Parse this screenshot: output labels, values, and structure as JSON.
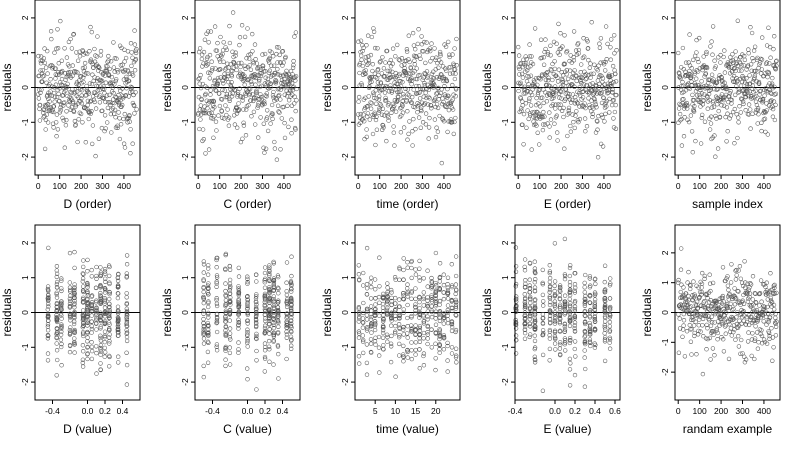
{
  "figure": {
    "point_color": "#555555",
    "ref_line_color": "#000000"
  },
  "chart_data": [
    {
      "type": "scatter",
      "xlabel": "D (order)",
      "ylabel": "residuals",
      "xlim": [
        -15,
        475
      ],
      "ylim": [
        -2.4,
        2.4
      ],
      "xticks": [
        0,
        100,
        200,
        300,
        400
      ],
      "yticks": [
        -2,
        -1,
        0,
        1,
        2
      ],
      "ref_y": 0,
      "pattern": "index",
      "n": 460,
      "seed": 11
    },
    {
      "type": "scatter",
      "xlabel": "C (order)",
      "ylabel": "residuals",
      "xlim": [
        -15,
        475
      ],
      "ylim": [
        -2.4,
        2.4
      ],
      "xticks": [
        0,
        100,
        200,
        300,
        400
      ],
      "yticks": [
        -2,
        -1,
        0,
        1,
        2
      ],
      "ref_y": 0,
      "pattern": "index",
      "n": 460,
      "seed": 23
    },
    {
      "type": "scatter",
      "xlabel": "time (order)",
      "ylabel": "residuals",
      "xlim": [
        -15,
        475
      ],
      "ylim": [
        -2.4,
        2.4
      ],
      "xticks": [
        0,
        100,
        200,
        300,
        400
      ],
      "yticks": [
        -2,
        -1,
        0,
        1,
        2
      ],
      "ref_y": 0,
      "pattern": "index",
      "n": 460,
      "seed": 37
    },
    {
      "type": "scatter",
      "xlabel": "E (order)",
      "ylabel": "residuals",
      "xlim": [
        -15,
        475
      ],
      "ylim": [
        -2.4,
        2.4
      ],
      "xticks": [
        0,
        100,
        200,
        300,
        400
      ],
      "yticks": [
        -2,
        -1,
        0,
        1,
        2
      ],
      "ref_y": 0,
      "pattern": "index",
      "n": 460,
      "seed": 41
    },
    {
      "type": "scatter",
      "xlabel": "sample index",
      "ylabel": "residuals",
      "xlim": [
        -15,
        475
      ],
      "ylim": [
        -2.4,
        2.4
      ],
      "xticks": [
        0,
        100,
        200,
        300,
        400
      ],
      "yticks": [
        -2,
        -1,
        0,
        1,
        2
      ],
      "ref_y": 0,
      "pattern": "index",
      "n": 460,
      "seed": 53
    },
    {
      "type": "scatter",
      "xlabel": "D (value)",
      "ylabel": "residuals",
      "xlim": [
        -0.6,
        0.6
      ],
      "ylim": [
        -2.4,
        2.4
      ],
      "xticks": [
        -0.4,
        0.0,
        0.2,
        0.4
      ],
      "xtick_labels": [
        "-0.4",
        "0.0",
        "0.2",
        "0.4"
      ],
      "yticks": [
        -2,
        -1,
        0,
        1,
        2
      ],
      "ref_y": 0,
      "pattern": "columns",
      "columns": [
        -0.45,
        -0.35,
        -0.3,
        -0.2,
        -0.15,
        -0.05,
        0.0,
        0.05,
        0.1,
        0.15,
        0.2,
        0.25,
        0.35,
        0.45
      ],
      "n": 460,
      "seed": 61
    },
    {
      "type": "scatter",
      "xlabel": "C (value)",
      "ylabel": "residuals",
      "xlim": [
        -0.6,
        0.6
      ],
      "ylim": [
        -2.4,
        2.4
      ],
      "xticks": [
        -0.4,
        0.0,
        0.2,
        0.4
      ],
      "xtick_labels": [
        "-0.4",
        "0.0",
        "0.2",
        "0.4"
      ],
      "yticks": [
        -2,
        -1,
        0,
        1,
        2
      ],
      "ref_y": 0,
      "pattern": "columns",
      "columns": [
        -0.5,
        -0.45,
        -0.35,
        -0.25,
        -0.2,
        -0.1,
        0.0,
        0.1,
        0.2,
        0.25,
        0.3,
        0.35,
        0.45,
        0.5
      ],
      "n": 460,
      "seed": 71
    },
    {
      "type": "scatter",
      "xlabel": "time (value)",
      "ylabel": "residuals",
      "xlim": [
        0,
        26
      ],
      "ylim": [
        -2.4,
        2.4
      ],
      "xticks": [
        5,
        10,
        15,
        20
      ],
      "yticks": [
        -2,
        -1,
        0,
        1,
        2
      ],
      "ref_y": 0,
      "pattern": "columns",
      "columns": [
        1,
        2,
        3,
        4,
        5,
        6,
        7,
        8,
        9,
        10,
        11,
        12,
        13,
        14,
        15,
        16,
        17,
        18,
        19,
        20,
        21,
        22,
        23,
        24,
        25
      ],
      "n": 460,
      "seed": 79
    },
    {
      "type": "scatter",
      "xlabel": "E (value)",
      "ylabel": "residuals",
      "xlim": [
        -0.4,
        0.65
      ],
      "ylim": [
        -2.4,
        2.4
      ],
      "xticks": [
        -0.4,
        0.0,
        0.2,
        0.4,
        0.6
      ],
      "xtick_labels": [
        "-0.4",
        "0.0",
        "0.2",
        "0.4",
        "0.6"
      ],
      "yticks": [
        -2,
        -1,
        0,
        1,
        2
      ],
      "ref_y": 0,
      "pattern": "columns",
      "columns": [
        -0.39,
        -0.3,
        -0.25,
        -0.2,
        -0.12,
        -0.05,
        0.0,
        0.05,
        0.1,
        0.15,
        0.2,
        0.3,
        0.35,
        0.4,
        0.5,
        0.55
      ],
      "n": 460,
      "seed": 89
    },
    {
      "type": "scatter",
      "xlabel": "randam example",
      "ylabel": "residuals",
      "xlim": [
        -15,
        475
      ],
      "ylim": [
        -2.8,
        2.8
      ],
      "xticks": [
        0,
        100,
        200,
        300,
        400
      ],
      "yticks": [
        -2,
        -1,
        0,
        1,
        2
      ],
      "ref_y": 0,
      "pattern": "index",
      "n": 460,
      "seed": 97
    }
  ]
}
